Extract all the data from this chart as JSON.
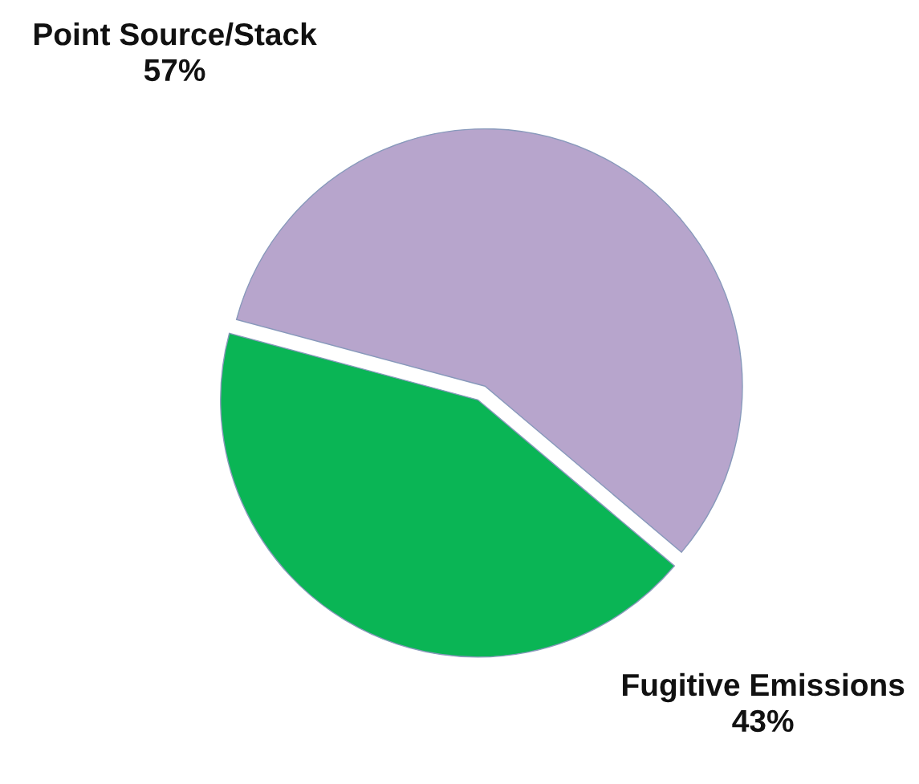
{
  "chart_data": {
    "type": "pie",
    "categories": [
      "Point Source/Stack",
      "Fugitive Emissions"
    ],
    "values": [
      57,
      43
    ],
    "value_labels": [
      "57%",
      "43%"
    ],
    "colors": [
      "#b7a5cc",
      "#0ab555"
    ]
  }
}
